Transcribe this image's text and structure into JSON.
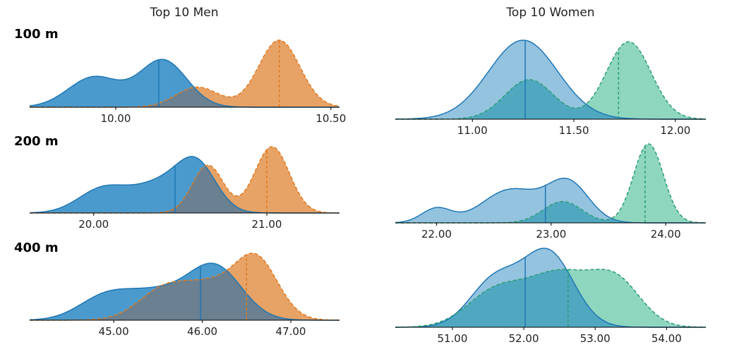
{
  "column_titles": [
    "Top 10 Men",
    "Top 10 Women"
  ],
  "row_labels": [
    "100 m",
    "200 m",
    "400 m"
  ],
  "colors": {
    "men_line": "#1f77b4",
    "men_fill": "#4b9acd",
    "men_compare_line": "#e07a1f",
    "men_compare_fill": "#e7a266",
    "men_overlap": "#6b8090",
    "women_line": "#1f77b4",
    "women_fill": "#94c3e0",
    "women_compare_line": "#2a9d73",
    "women_compare_fill": "#8fd6bf",
    "women_overlap": "#4fa8c0"
  },
  "chart_data": [
    {
      "type": "area",
      "title": "Top 10 Men",
      "row_label": "100 m",
      "xlim": [
        9.8,
        10.52
      ],
      "ticks": [
        10.0,
        10.5
      ],
      "tick_labels": [
        "10.00",
        "10.50"
      ],
      "series": [
        {
          "style": "solid",
          "bumps": [
            {
              "mu": 9.95,
              "sd": 0.06,
              "w": 0.45
            },
            {
              "mu": 10.11,
              "sd": 0.055,
              "w": 0.7
            }
          ],
          "marker": 10.1
        },
        {
          "style": "dashed",
          "bumps": [
            {
              "mu": 10.19,
              "sd": 0.05,
              "w": 0.3
            },
            {
              "mu": 10.38,
              "sd": 0.048,
              "w": 1.0
            }
          ],
          "marker": 10.38
        }
      ]
    },
    {
      "type": "area",
      "title": "Top 10 Women",
      "row_label": "100 m",
      "xlim": [
        10.62,
        12.15
      ],
      "ticks": [
        11.0,
        11.5,
        12.0
      ],
      "tick_labels": [
        "11.00",
        "11.50",
        "12.00"
      ],
      "series": [
        {
          "style": "solid",
          "bumps": [
            {
              "mu": 11.25,
              "sd": 0.17,
              "w": 1.0
            }
          ],
          "marker": 11.26
        },
        {
          "style": "dashed",
          "bumps": [
            {
              "mu": 11.28,
              "sd": 0.12,
              "w": 0.5
            },
            {
              "mu": 11.77,
              "sd": 0.11,
              "w": 0.98
            }
          ],
          "marker": 11.72
        }
      ]
    },
    {
      "type": "area",
      "title": "Top 10 Men",
      "row_label": "200 m",
      "xlim": [
        19.63,
        21.42
      ],
      "ticks": [
        20.0,
        21.0
      ],
      "tick_labels": [
        "20.00",
        "21.00"
      ],
      "series": [
        {
          "style": "solid",
          "bumps": [
            {
              "mu": 20.05,
              "sd": 0.14,
              "w": 0.35
            },
            {
              "mu": 20.4,
              "sd": 0.17,
              "w": 0.45
            },
            {
              "mu": 20.6,
              "sd": 0.11,
              "w": 0.6
            }
          ],
          "marker": 20.47
        },
        {
          "style": "dashed",
          "bumps": [
            {
              "mu": 20.66,
              "sd": 0.09,
              "w": 0.72
            },
            {
              "mu": 21.03,
              "sd": 0.1,
              "w": 1.0
            }
          ],
          "marker": 21.0
        }
      ]
    },
    {
      "type": "area",
      "title": "Top 10 Women",
      "row_label": "200 m",
      "xlim": [
        21.64,
        24.35
      ],
      "ticks": [
        22.0,
        23.0,
        24.0
      ],
      "tick_labels": [
        "22.00",
        "23.00",
        "24.00"
      ],
      "series": [
        {
          "style": "solid",
          "bumps": [
            {
              "mu": 22.0,
              "sd": 0.13,
              "w": 0.18
            },
            {
              "mu": 22.65,
              "sd": 0.25,
              "w": 0.42
            },
            {
              "mu": 23.15,
              "sd": 0.18,
              "w": 0.5
            }
          ],
          "marker": 22.95
        },
        {
          "style": "dashed",
          "bumps": [
            {
              "mu": 23.1,
              "sd": 0.17,
              "w": 0.27
            },
            {
              "mu": 23.85,
              "sd": 0.13,
              "w": 1.0
            }
          ],
          "marker": 23.82
        }
      ]
    },
    {
      "type": "area",
      "title": "Top 10 Men",
      "row_label": "400 m",
      "xlim": [
        44.05,
        47.55
      ],
      "ticks": [
        45.0,
        46.0,
        47.0
      ],
      "tick_labels": [
        "45.00",
        "46.00",
        "47.00"
      ],
      "series": [
        {
          "style": "solid",
          "bumps": [
            {
              "mu": 44.9,
              "sd": 0.3,
              "w": 0.3
            },
            {
              "mu": 45.5,
              "sd": 0.35,
              "w": 0.35
            },
            {
              "mu": 46.15,
              "sd": 0.3,
              "w": 0.7
            }
          ],
          "marker": 45.98
        },
        {
          "style": "dashed",
          "bumps": [
            {
              "mu": 45.6,
              "sd": 0.3,
              "w": 0.45
            },
            {
              "mu": 46.1,
              "sd": 0.25,
              "w": 0.35
            },
            {
              "mu": 46.6,
              "sd": 0.25,
              "w": 0.85
            }
          ],
          "marker": 46.5
        }
      ]
    },
    {
      "type": "area",
      "title": "Top 10 Women",
      "row_label": "400 m",
      "xlim": [
        50.2,
        54.55
      ],
      "ticks": [
        51.0,
        52.0,
        53.0,
        54.0
      ],
      "tick_labels": [
        "51.00",
        "52.00",
        "53.00",
        "54.00"
      ],
      "series": [
        {
          "style": "solid",
          "bumps": [
            {
              "mu": 51.6,
              "sd": 0.35,
              "w": 0.55
            },
            {
              "mu": 52.35,
              "sd": 0.35,
              "w": 0.85
            }
          ],
          "marker": 52.02
        },
        {
          "style": "dashed",
          "bumps": [
            {
              "mu": 51.6,
              "sd": 0.4,
              "w": 0.4
            },
            {
              "mu": 52.5,
              "sd": 0.45,
              "w": 0.6
            },
            {
              "mu": 53.3,
              "sd": 0.35,
              "w": 0.5
            }
          ],
          "marker": 52.62
        }
      ]
    }
  ]
}
